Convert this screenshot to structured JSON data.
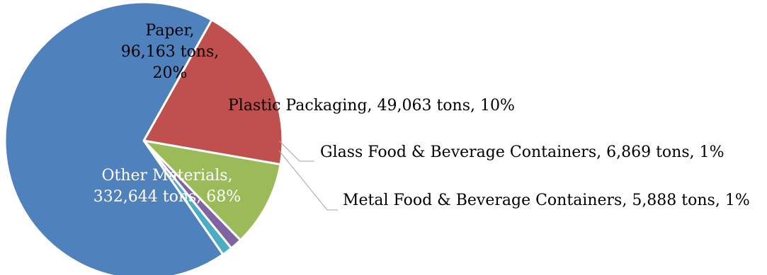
{
  "chart_data": {
    "type": "pie",
    "title": "",
    "slices": [
      {
        "name": "Paper",
        "value": 96163,
        "unit": "tons",
        "percent": "20%",
        "color": "#C0504D",
        "label_lines": [
          "Paper,",
          "96,163 tons,",
          "20%"
        ],
        "label_color": "#000000"
      },
      {
        "name": "Plastic Packaging",
        "value": 49063,
        "unit": "tons",
        "percent": "10%",
        "color": "#9BBB59",
        "label_lines": [
          "Plastic Packaging, 49,063 tons, 10%"
        ],
        "label_color": "#000000"
      },
      {
        "name": "Glass Food & Beverage Containers",
        "value": 6869,
        "unit": "tons",
        "percent": "1%",
        "color": "#8064A2",
        "label_lines": [
          "Glass Food & Beverage Containers, 6,869 tons, 1%"
        ],
        "label_color": "#000000"
      },
      {
        "name": "Metal Food & Beverage Containers",
        "value": 5888,
        "unit": "tons",
        "percent": "1%",
        "color": "#4BACC6",
        "label_lines": [
          "Metal Food & Beverage Containers, 5,888 tons, 1%"
        ],
        "label_color": "#000000"
      },
      {
        "name": "Other Materials",
        "value": 332644,
        "unit": "tons",
        "percent": "68%",
        "color": "#4F81BD",
        "label_lines": [
          "Other Materials,",
          "332,644 tons, 68%"
        ],
        "label_color": "#ffffff"
      }
    ],
    "leader_line_color": "#A6A6A6"
  }
}
